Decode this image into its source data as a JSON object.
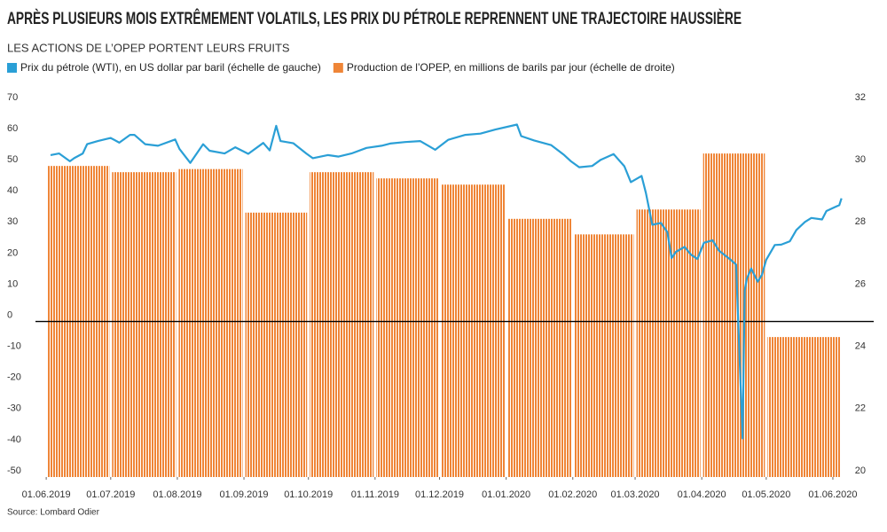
{
  "chart_data": {
    "type": "combo",
    "title": "APRÈS PLUSIEURS MOIS EXTRÊMEMENT VOLATILS, LES PRIX DU PÉTROLE REPRENNENT UNE TRAJECTOIRE HAUSSIÈRE",
    "subtitle": "LES ACTIONS DE L’OPEP PORTENT LEURS FRUITS",
    "source": "Source: Lombard Odier",
    "xlim": [
      "2019-05-27",
      "2020-06-20"
    ],
    "xticks": [
      {
        "value": "2019-06-01",
        "label": "01.06.2019"
      },
      {
        "value": "2019-07-01",
        "label": "01.07.2019"
      },
      {
        "value": "2019-08-01",
        "label": "01.08.2019"
      },
      {
        "value": "2019-09-01",
        "label": "01.09.2019"
      },
      {
        "value": "2019-10-01",
        "label": "01.10.2019"
      },
      {
        "value": "2019-11-01",
        "label": "01.11.2019"
      },
      {
        "value": "2019-12-01",
        "label": "01.12.2019"
      },
      {
        "value": "2020-01-01",
        "label": "01.01.2020"
      },
      {
        "value": "2020-02-01",
        "label": "01.02.2020"
      },
      {
        "value": "2020-03-01",
        "label": "01.03.2020"
      },
      {
        "value": "2020-04-01",
        "label": "01.04.2020"
      },
      {
        "value": "2020-05-01",
        "label": "01.05.2020"
      },
      {
        "value": "2020-06-01",
        "label": "01.06.2020"
      }
    ],
    "ylim": [
      -50,
      70
    ],
    "yticks": [
      -50,
      -40,
      -30,
      -20,
      -10,
      0,
      10,
      20,
      30,
      40,
      50,
      60,
      70
    ],
    "y2lim": [
      20,
      32
    ],
    "y2ticks": [
      20,
      22,
      24,
      26,
      28,
      30,
      32
    ],
    "zero_line": true,
    "series": [
      {
        "name": "Prix du pétrole (WTI), en US dollar par baril (échelle de gauche)",
        "type": "line",
        "color": "#2a9fd6",
        "x": [
          "2019-06-03",
          "2019-06-07",
          "2019-06-12",
          "2019-06-14",
          "2019-06-18",
          "2019-06-20",
          "2019-06-25",
          "2019-06-28",
          "2019-07-01",
          "2019-07-05",
          "2019-07-10",
          "2019-07-12",
          "2019-07-17",
          "2019-07-23",
          "2019-07-31",
          "2019-08-02",
          "2019-08-07",
          "2019-08-13",
          "2019-08-16",
          "2019-08-23",
          "2019-08-28",
          "2019-09-03",
          "2019-09-10",
          "2019-09-13",
          "2019-09-16",
          "2019-09-18",
          "2019-09-24",
          "2019-09-30",
          "2019-10-03",
          "2019-10-10",
          "2019-10-15",
          "2019-10-21",
          "2019-10-28",
          "2019-11-04",
          "2019-11-08",
          "2019-11-15",
          "2019-11-22",
          "2019-11-29",
          "2019-12-05",
          "2019-12-13",
          "2019-12-20",
          "2019-12-27",
          "2020-01-06",
          "2020-01-08",
          "2020-01-14",
          "2020-01-22",
          "2020-01-28",
          "2020-01-31",
          "2020-02-04",
          "2020-02-10",
          "2020-02-14",
          "2020-02-20",
          "2020-02-25",
          "2020-02-28",
          "2020-03-04",
          "2020-03-06",
          "2020-03-09",
          "2020-03-13",
          "2020-03-16",
          "2020-03-18",
          "2020-03-20",
          "2020-03-24",
          "2020-03-27",
          "2020-03-30",
          "2020-04-02",
          "2020-04-06",
          "2020-04-09",
          "2020-04-14",
          "2020-04-17",
          "2020-04-20",
          "2020-04-21",
          "2020-04-22",
          "2020-04-24",
          "2020-04-27",
          "2020-04-29",
          "2020-05-01",
          "2020-05-05",
          "2020-05-08",
          "2020-05-12",
          "2020-05-15",
          "2020-05-19",
          "2020-05-22",
          "2020-05-27",
          "2020-05-29",
          "2020-06-02",
          "2020-06-04",
          "2020-06-05"
        ],
        "values": [
          53.5,
          54,
          51.5,
          52.5,
          54,
          57,
          58,
          58.5,
          59,
          57.5,
          60,
          60,
          57,
          56.5,
          58.5,
          55.5,
          51,
          57,
          54.9,
          54,
          56,
          53.9,
          57.4,
          55,
          62.9,
          58,
          57.3,
          54,
          52.5,
          53.5,
          53,
          54,
          55.8,
          56.5,
          57.2,
          57.7,
          58,
          55.2,
          58.4,
          60,
          60.4,
          61.7,
          63.3,
          59.6,
          58.2,
          56.7,
          53.5,
          51.6,
          49.6,
          50,
          52,
          53.8,
          49.9,
          44.8,
          46.8,
          41.3,
          31.1,
          31.7,
          28.7,
          20.4,
          22.4,
          24,
          21.5,
          20.1,
          25.3,
          26.1,
          22.8,
          20.1,
          18.3,
          -37.6,
          10,
          13.8,
          17,
          12.8,
          15,
          19.8,
          24.6,
          24.7,
          25.8,
          29.4,
          32,
          33.3,
          32.8,
          35.5,
          36.8,
          37.4,
          39.6
        ]
      },
      {
        "name": "Production de l’OPEP, en millions de barils par jour (échelle de droite)",
        "type": "bar",
        "axis": "y2",
        "color": "#ef8537",
        "x": [
          "2019-06-01",
          "2019-07-01",
          "2019-08-01",
          "2019-09-01",
          "2019-10-01",
          "2019-11-01",
          "2019-12-01",
          "2020-01-01",
          "2020-02-01",
          "2020-03-01",
          "2020-04-01",
          "2020-05-01"
        ],
        "values": [
          30.0,
          29.8,
          29.9,
          28.5,
          29.8,
          29.6,
          29.4,
          28.3,
          27.8,
          28.6,
          30.4,
          24.5
        ]
      }
    ]
  }
}
